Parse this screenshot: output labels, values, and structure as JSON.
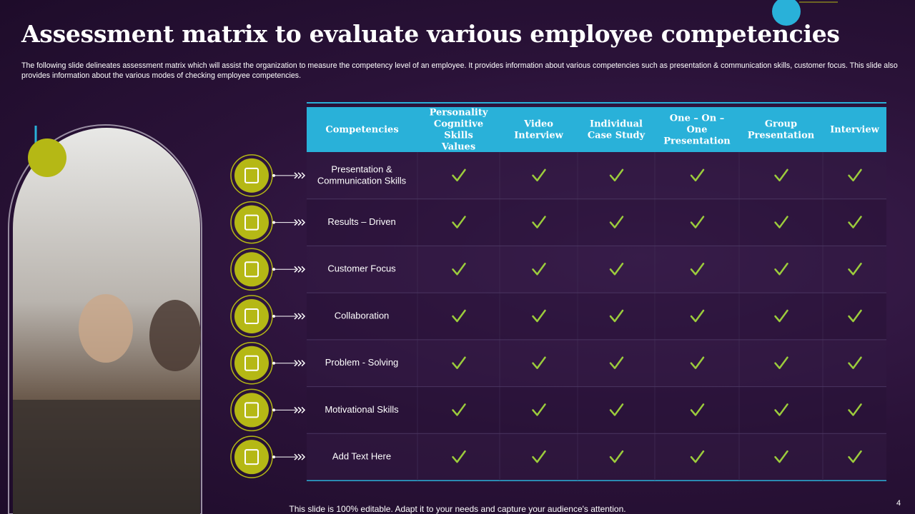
{
  "header": {
    "title": "Assessment matrix to evaluate various employee competencies",
    "subtitle": "The following slide delineates assessment matrix which will assist the organization to measure the competency level of an employee. It provides information about various competencies such as presentation & communication skills, customer focus. This slide also provides information about the various modes of checking employee competencies."
  },
  "table": {
    "headers": [
      "Competencies",
      "Personality Cognitive Skills Values",
      "Video Interview",
      "Individual Case Study",
      "One – On – One Presentation",
      "Group Presentation",
      "Interview"
    ],
    "rows": [
      {
        "label": "Presentation & Communication Skills",
        "checks": [
          true,
          true,
          true,
          true,
          true,
          true
        ]
      },
      {
        "label": "Results – Driven",
        "checks": [
          true,
          true,
          true,
          true,
          true,
          true
        ]
      },
      {
        "label": "Customer Focus",
        "checks": [
          true,
          true,
          true,
          true,
          true,
          true
        ]
      },
      {
        "label": "Collaboration",
        "checks": [
          true,
          true,
          true,
          true,
          true,
          true
        ]
      },
      {
        "label": "Problem - Solving",
        "checks": [
          true,
          true,
          true,
          true,
          true,
          true
        ]
      },
      {
        "label": "Motivational Skills",
        "checks": [
          true,
          true,
          true,
          true,
          true,
          true
        ]
      },
      {
        "label": "Add Text Here",
        "checks": [
          true,
          true,
          true,
          true,
          true,
          true
        ]
      }
    ]
  },
  "footer": {
    "note": "This slide is 100% editable. Adapt it to your needs and capture your audience's attention.",
    "page": "4"
  }
}
